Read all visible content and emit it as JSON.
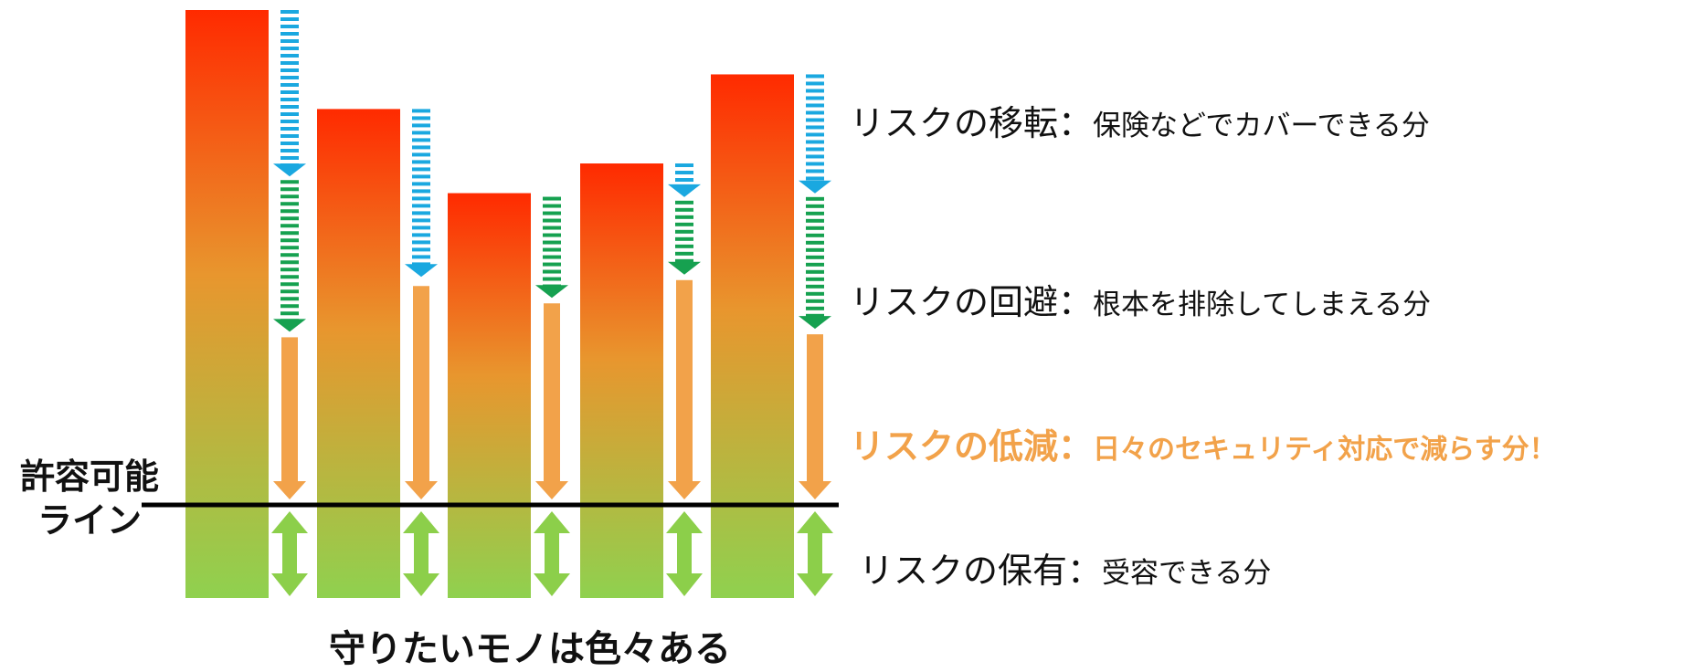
{
  "legend": {
    "transfer": {
      "head": "リスクの移転：",
      "desc": "保険などでカバーできる分",
      "color": "#1aa8e0"
    },
    "avoidance": {
      "head": "リスクの回避：",
      "desc": "根本を排除してしまえる分",
      "color": "#16a150"
    },
    "reduction": {
      "head": "リスクの低減：",
      "desc": "日々のセキュリティ対応で減らす分！",
      "color": "#f2a24a"
    },
    "retention": {
      "head": "リスクの保有：",
      "desc": "受容できる分",
      "color": "#8ccf4a"
    }
  },
  "tolerance_line": {
    "line1": "許容可能",
    "line2": "ライン"
  },
  "caption": "守りたいモノは色々ある",
  "risk_levels": [
    1.0,
    0.8,
    0.63,
    0.69,
    0.87
  ],
  "bar_gradient": {
    "top": "#ff2a00",
    "middle": "#e8962e",
    "bottom": "#8fd14f"
  }
}
